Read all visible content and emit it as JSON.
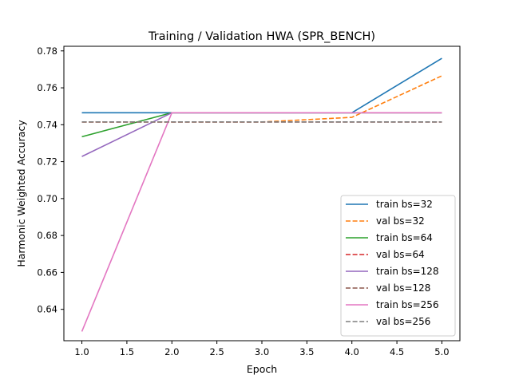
{
  "chart_data": {
    "type": "line",
    "title": "Training / Validation HWA (SPR_BENCH)",
    "xlabel": "Epoch",
    "ylabel": "Harmonic Weighted Accuracy",
    "xlim": [
      0.8,
      5.2
    ],
    "ylim": [
      0.623,
      0.7825
    ],
    "xticks": [
      "1.0",
      "1.5",
      "2.0",
      "2.5",
      "3.0",
      "3.5",
      "4.0",
      "4.5",
      "5.0"
    ],
    "yticks": [
      "0.64",
      "0.66",
      "0.68",
      "0.70",
      "0.72",
      "0.74",
      "0.76",
      "0.78"
    ],
    "grid": false,
    "legend_position": "lower-right",
    "x": [
      1,
      2,
      3,
      4,
      5
    ],
    "series": [
      {
        "name": "train bs=32",
        "values": [
          0.7465,
          0.7465,
          0.7465,
          0.7465,
          0.776
        ],
        "color": "#1f77b4",
        "dashed": false
      },
      {
        "name": "val bs=32",
        "values": [
          0.7415,
          0.7415,
          0.7415,
          0.744,
          0.7665
        ],
        "color": "#ff7f0e",
        "dashed": true
      },
      {
        "name": "train bs=64",
        "values": [
          0.7335,
          0.7465,
          0.7465,
          0.7465,
          0.7465
        ],
        "color": "#2ca02c",
        "dashed": false
      },
      {
        "name": "val bs=64",
        "values": [
          0.7415,
          0.7415,
          0.7415,
          0.7415,
          0.7415
        ],
        "color": "#d62728",
        "dashed": true
      },
      {
        "name": "train bs=128",
        "values": [
          0.7228,
          0.7465,
          0.7465,
          0.7465,
          0.7465
        ],
        "color": "#9467bd",
        "dashed": false
      },
      {
        "name": "val bs=128",
        "values": [
          0.7415,
          0.7415,
          0.7415,
          0.7415,
          0.7415
        ],
        "color": "#8c564b",
        "dashed": true
      },
      {
        "name": "train bs=256",
        "values": [
          0.628,
          0.7465,
          0.7465,
          0.7465,
          0.7465
        ],
        "color": "#e377c2",
        "dashed": false
      },
      {
        "name": "val bs=256",
        "values": [
          0.7415,
          0.7415,
          0.7415,
          0.7415,
          0.7415
        ],
        "color": "#7f7f7f",
        "dashed": true
      }
    ]
  }
}
